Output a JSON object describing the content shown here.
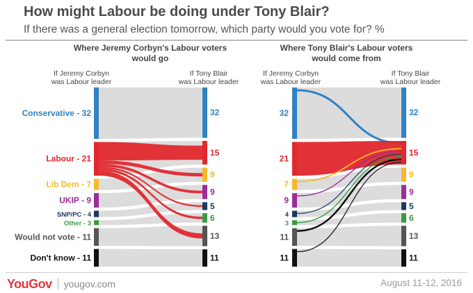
{
  "title": "How might Labour be doing under Tony Blair?",
  "subtitle": "If there was a general election tomorrow, which party would you vote for? %",
  "footer": {
    "logo": "YouGov",
    "site": "yougov.com",
    "date": "August 11-12, 2016"
  },
  "colors": {
    "Conservative": "#2f82c3",
    "Labour": "#e0282e",
    "Lib Dem": "#f6b92b",
    "UKIP": "#9b2c98",
    "SNP/PC": "#1b3a5c",
    "Other": "#3a9a45",
    "Would not vote": "#555555",
    "Don't know": "#111111",
    "flow": "#d6d6d6"
  },
  "chart_data": [
    {
      "type": "sankey",
      "title": "Where Jeremy Corbyn's Labour voters would go",
      "left_axis_label": "If Jeremy Corbyn was Labour leader",
      "right_axis_label": "If Tony Blair was Labour leader",
      "left_nodes": [
        {
          "name": "Conservative",
          "value": 32,
          "label": "Conservative - 32"
        },
        {
          "name": "Labour",
          "value": 21,
          "label": "Labour - 21"
        },
        {
          "name": "Lib Dem",
          "value": 7,
          "label": "Lib Dem - 7"
        },
        {
          "name": "UKIP",
          "value": 9,
          "label": "UKIP - 9"
        },
        {
          "name": "SNP/PC",
          "value": 4,
          "label": "SNP/PC - 4"
        },
        {
          "name": "Other",
          "value": 3,
          "label": "Other - 3"
        },
        {
          "name": "Would not vote",
          "value": 11,
          "label": "Would not vote - 11"
        },
        {
          "name": "Don't know",
          "value": 11,
          "label": "Don't know - 11"
        }
      ],
      "right_nodes": [
        {
          "name": "Conservative",
          "value": 32,
          "label": "32"
        },
        {
          "name": "Labour",
          "value": 15,
          "label": "15"
        },
        {
          "name": "Lib Dem",
          "value": 9,
          "label": "9"
        },
        {
          "name": "UKIP",
          "value": 9,
          "label": "9"
        },
        {
          "name": "SNP/PC",
          "value": 5,
          "label": "5"
        },
        {
          "name": "Other",
          "value": 6,
          "label": "6"
        },
        {
          "name": "Would not vote",
          "value": 13,
          "label": "13"
        },
        {
          "name": "Don't know",
          "value": 11,
          "label": "11"
        }
      ],
      "highlight": "Labour (Corbyn) voters, by destination"
    },
    {
      "type": "sankey",
      "title": "Where Tony Blair's Labour voters would come from",
      "left_axis_label": "If Jeremy Corbyn was Labour leader",
      "right_axis_label": "If Tony Blair was Labour leader",
      "left_nodes": [
        {
          "name": "Conservative",
          "value": 32,
          "label": "32"
        },
        {
          "name": "Labour",
          "value": 21,
          "label": "21"
        },
        {
          "name": "Lib Dem",
          "value": 7,
          "label": "7"
        },
        {
          "name": "UKIP",
          "value": 9,
          "label": "9"
        },
        {
          "name": "SNP/PC",
          "value": 4,
          "label": "4"
        },
        {
          "name": "Other",
          "value": 3,
          "label": "3"
        },
        {
          "name": "Would not vote",
          "value": 11,
          "label": "11"
        },
        {
          "name": "Don't know",
          "value": 11,
          "label": "11"
        }
      ],
      "right_nodes": [
        {
          "name": "Conservative",
          "value": 32,
          "label": "32"
        },
        {
          "name": "Labour",
          "value": 15,
          "label": "15"
        },
        {
          "name": "Lib Dem",
          "value": 9,
          "label": "9"
        },
        {
          "name": "UKIP",
          "value": 9,
          "label": "9"
        },
        {
          "name": "SNP/PC",
          "value": 5,
          "label": "5"
        },
        {
          "name": "Other",
          "value": 6,
          "label": "6"
        },
        {
          "name": "Would not vote",
          "value": 13,
          "label": "13"
        },
        {
          "name": "Don't know",
          "value": 11,
          "label": "11"
        }
      ],
      "highlight": "Labour (Blair) voters, by origin"
    }
  ]
}
